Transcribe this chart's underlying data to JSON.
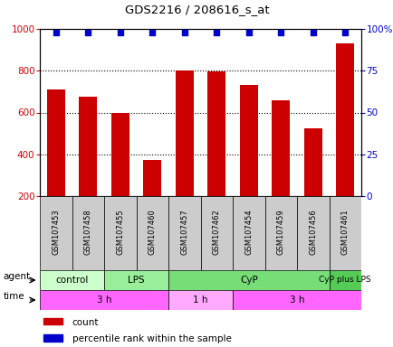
{
  "title": "GDS2216 / 208616_s_at",
  "samples": [
    "GSM107453",
    "GSM107458",
    "GSM107455",
    "GSM107460",
    "GSM107457",
    "GSM107462",
    "GSM107454",
    "GSM107459",
    "GSM107456",
    "GSM107461"
  ],
  "counts": [
    710,
    675,
    600,
    375,
    800,
    795,
    730,
    660,
    525,
    930
  ],
  "percentile_rank": 98,
  "bar_color": "#cc0000",
  "dot_color": "#0000cc",
  "ylim_left": [
    200,
    1000
  ],
  "ylim_right": [
    0,
    100
  ],
  "yticks_left": [
    200,
    400,
    600,
    800,
    1000
  ],
  "yticks_right": [
    0,
    25,
    50,
    75,
    100
  ],
  "agent_groups": [
    {
      "label": "control",
      "start": 0,
      "end": 2,
      "color": "#ccffcc"
    },
    {
      "label": "LPS",
      "start": 2,
      "end": 4,
      "color": "#99ee99"
    },
    {
      "label": "CyP",
      "start": 4,
      "end": 9,
      "color": "#77dd77"
    },
    {
      "label": "CyP plus LPS",
      "start": 9,
      "end": 10,
      "color": "#55cc55"
    }
  ],
  "time_groups": [
    {
      "label": "3 h",
      "start": 0,
      "end": 4,
      "color": "#ff66ff"
    },
    {
      "label": "1 h",
      "start": 4,
      "end": 6,
      "color": "#ffaaff"
    },
    {
      "label": "3 h",
      "start": 6,
      "end": 10,
      "color": "#ff66ff"
    }
  ],
  "sample_box_color": "#cccccc",
  "label_color_left": "#cc0000",
  "label_color_right": "#0000cc",
  "grid_color": "black"
}
